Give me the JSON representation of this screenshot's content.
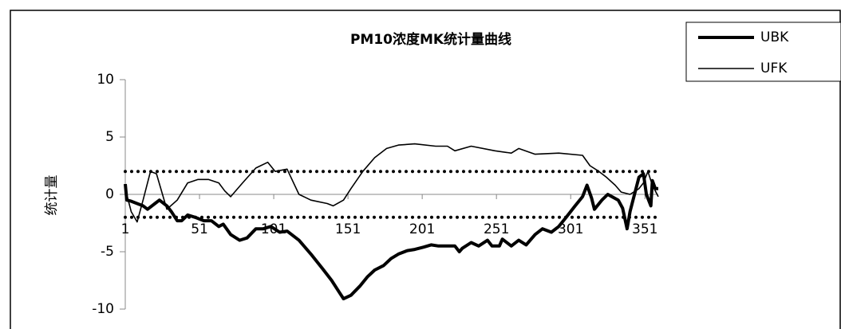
{
  "chart_data": {
    "type": "line",
    "title": "PM10浓度MK统计量曲线",
    "ylabel": "统计量",
    "xlim": [
      1,
      360
    ],
    "xticks": [
      1,
      51,
      101,
      151,
      201,
      251,
      301,
      351
    ],
    "ylim": [
      -10,
      10
    ],
    "yticks": [
      -10,
      -5,
      0,
      5,
      10
    ],
    "hlines": [
      2,
      -2
    ],
    "hline_style": "dotted",
    "legend": "upper right",
    "series": [
      {
        "name": "UBK",
        "color": "#000000",
        "width": 4,
        "x": [
          1,
          2,
          5,
          13,
          16,
          21,
          24,
          29,
          32,
          36,
          39,
          43,
          48,
          54,
          59,
          64,
          67,
          72,
          78,
          83,
          89,
          94,
          99,
          105,
          110,
          118,
          126,
          134,
          140,
          145,
          148,
          153,
          159,
          164,
          169,
          175,
          180,
          185,
          191,
          196,
          202,
          207,
          212,
          223,
          226,
          228,
          234,
          239,
          245,
          248,
          253,
          255,
          261,
          266,
          271,
          277,
          282,
          288,
          293,
          298,
          304,
          309,
          312,
          315,
          317,
          322,
          326,
          333,
          336,
          339,
          341,
          344,
          347,
          350,
          352,
          355,
          356,
          358,
          360
        ],
        "values": [
          0.9,
          -0.5,
          -0.6,
          -1.0,
          -1.3,
          -0.8,
          -0.5,
          -1.0,
          -1.5,
          -2.3,
          -2.3,
          -1.8,
          -2.0,
          -2.3,
          -2.3,
          -2.8,
          -2.6,
          -3.5,
          -4.0,
          -3.8,
          -3.0,
          -3.0,
          -2.8,
          -3.3,
          -3.2,
          -4.0,
          -5.2,
          -6.5,
          -7.5,
          -8.5,
          -9.1,
          -8.8,
          -8.0,
          -7.2,
          -6.6,
          -6.2,
          -5.6,
          -5.2,
          -4.9,
          -4.8,
          -4.6,
          -4.4,
          -4.5,
          -4.5,
          -5.0,
          -4.7,
          -4.2,
          -4.5,
          -4.0,
          -4.5,
          -4.5,
          -3.9,
          -4.5,
          -4.0,
          -4.4,
          -3.5,
          -3.0,
          -3.3,
          -2.8,
          -2.0,
          -1.0,
          -0.2,
          0.8,
          -0.3,
          -1.3,
          -0.5,
          0.0,
          -0.5,
          -1.2,
          -3.0,
          -1.5,
          0.0,
          1.5,
          1.8,
          0.0,
          -1.0,
          1.2,
          0.5,
          0.5
        ]
      },
      {
        "name": "UFK",
        "color": "#000000",
        "width": 1.6,
        "x": [
          1,
          5,
          9,
          13,
          18,
          22,
          29,
          36,
          43,
          50,
          57,
          64,
          68,
          72,
          80,
          89,
          97,
          102,
          110,
          118,
          126,
          137,
          141,
          148,
          153,
          161,
          169,
          177,
          185,
          196,
          210,
          218,
          223,
          234,
          250,
          261,
          266,
          277,
          293,
          309,
          314,
          320,
          325,
          331,
          335,
          341,
          347,
          350,
          353,
          356,
          360
        ],
        "values": [
          0.5,
          -1.5,
          -2.4,
          -0.5,
          2.0,
          1.8,
          -1.3,
          -0.5,
          1.0,
          1.3,
          1.3,
          1.0,
          0.3,
          -0.2,
          1.0,
          2.3,
          2.8,
          2.0,
          2.2,
          0.0,
          -0.5,
          -0.8,
          -1.0,
          -0.5,
          0.5,
          2.0,
          3.2,
          4.0,
          4.3,
          4.4,
          4.2,
          4.2,
          3.8,
          4.2,
          3.8,
          3.6,
          4.0,
          3.5,
          3.6,
          3.4,
          2.5,
          2.0,
          1.5,
          0.8,
          0.2,
          0.0,
          0.5,
          1.0,
          2.0,
          0.8,
          -0.2
        ]
      }
    ]
  }
}
